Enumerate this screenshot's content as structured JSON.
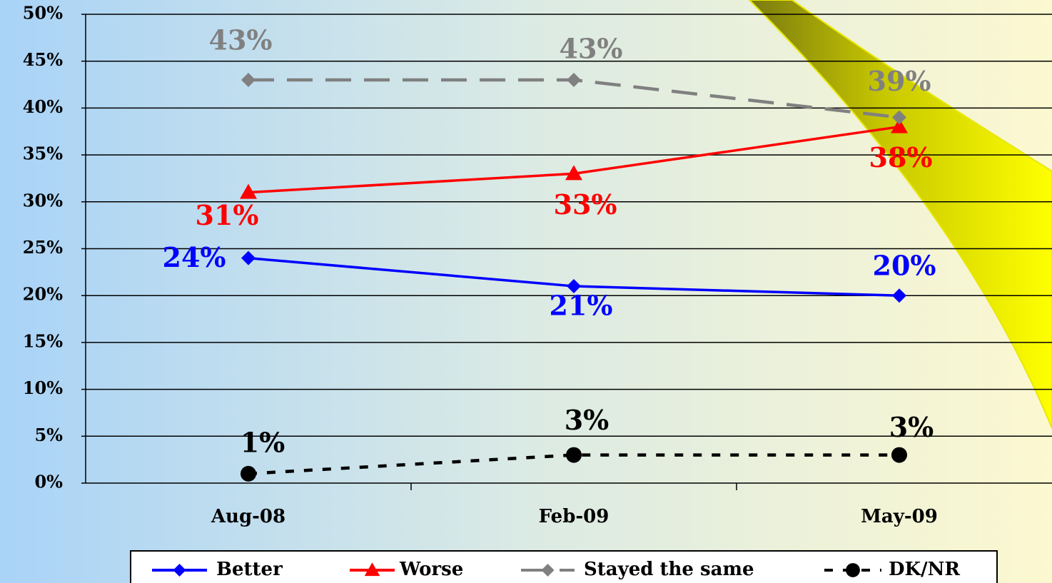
{
  "chart_data": {
    "type": "line",
    "categories": [
      "Aug-08",
      "Feb-09",
      "May-09"
    ],
    "series": [
      {
        "name": "Better",
        "color": "#0000ff",
        "marker": "diamond",
        "line_style": "solid",
        "values": [
          24,
          21,
          20
        ],
        "value_labels": [
          "24%",
          "21%",
          "20%"
        ]
      },
      {
        "name": "Worse",
        "color": "#ff0000",
        "marker": "triangle",
        "line_style": "solid",
        "values": [
          31,
          33,
          38
        ],
        "value_labels": [
          "31%",
          "33%",
          "38%"
        ]
      },
      {
        "name": "Stayed the same",
        "color": "#808080",
        "marker": "diamond",
        "line_style": "dashed",
        "values": [
          43,
          43,
          39
        ],
        "value_labels": [
          "43%",
          "43%",
          "39%"
        ]
      },
      {
        "name": "DK/NR",
        "color": "#000000",
        "marker": "circle",
        "line_style": "dotted",
        "values": [
          1,
          3,
          3
        ],
        "value_labels": [
          "1%",
          "3%",
          "3%"
        ]
      }
    ],
    "ylim": [
      0,
      50
    ],
    "yticks": [
      {
        "value": 0,
        "label": "0%"
      },
      {
        "value": 5,
        "label": "5%"
      },
      {
        "value": 10,
        "label": "10%"
      },
      {
        "value": 15,
        "label": "15%"
      },
      {
        "value": 20,
        "label": "20%"
      },
      {
        "value": 25,
        "label": "25%"
      },
      {
        "value": 30,
        "label": "30%"
      },
      {
        "value": 35,
        "label": "35%"
      },
      {
        "value": 40,
        "label": "40%"
      },
      {
        "value": 45,
        "label": "45%"
      },
      {
        "value": 50,
        "label": "50%"
      }
    ],
    "grid": true,
    "legend": "bottom"
  }
}
